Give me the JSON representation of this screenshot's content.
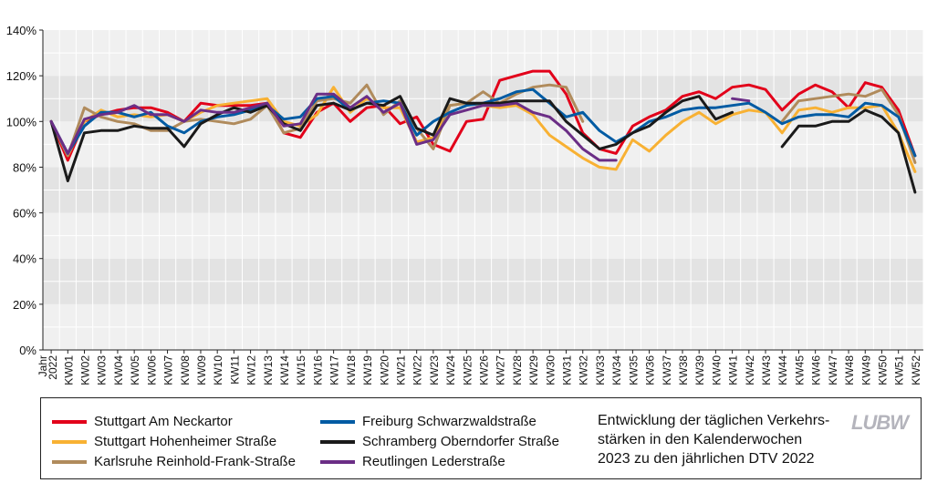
{
  "chart_data": {
    "type": "line",
    "title": "Entwicklung der täglichen Verkehrs-\nstärken in den Kalenderwochen\n2023 zu den jährlichen DTV 2022",
    "ylabel": "",
    "xlabel": "",
    "ylim": [
      0,
      140
    ],
    "yticks": [
      "0%",
      "20%",
      "40%",
      "60%",
      "80%",
      "100%",
      "120%",
      "140%"
    ],
    "categories": [
      "Jahr 2022",
      "KW01",
      "KW02",
      "KW03",
      "KW04",
      "KW05",
      "KW06",
      "KW07",
      "KW08",
      "KW09",
      "KW10",
      "KW11",
      "KW12",
      "KW13",
      "KW14",
      "KW15",
      "KW16",
      "KW17",
      "KW18",
      "KW19",
      "KW20",
      "KW21",
      "KW22",
      "KW23",
      "KW24",
      "KW25",
      "KW26",
      "KW27",
      "KW28",
      "KW29",
      "KW30",
      "KW31",
      "KW32",
      "KW33",
      "KW34",
      "KW35",
      "KW36",
      "KW37",
      "KW38",
      "KW39",
      "KW40",
      "KW41",
      "KW42",
      "KW43",
      "KW44",
      "KW45",
      "KW46",
      "KW47",
      "KW48",
      "KW49",
      "KW50",
      "KW51",
      "KW52"
    ],
    "grid": "horizontal bands",
    "legend_position": "bottom",
    "series": [
      {
        "name": "Stuttgart Am Neckartor",
        "color": "#e2001a",
        "values": [
          100,
          83,
          100,
          103,
          105,
          106,
          106,
          104,
          100,
          108,
          107,
          107,
          107,
          108,
          95,
          93,
          104,
          108,
          100,
          106,
          107,
          99,
          102,
          90,
          87,
          100,
          101,
          118,
          120,
          122,
          122,
          112,
          95,
          88,
          86,
          98,
          102,
          105,
          111,
          113,
          110,
          115,
          116,
          114,
          105,
          112,
          116,
          113,
          106,
          117,
          115,
          105,
          85
        ]
      },
      {
        "name": "Stuttgart Hohenheimer Straße",
        "color": "#f8b133",
        "values": [
          100,
          85,
          100,
          105,
          102,
          103,
          102,
          103,
          100,
          104,
          107,
          108,
          109,
          110,
          100,
          98,
          103,
          115,
          104,
          110,
          106,
          106,
          91,
          93,
          107,
          108,
          107,
          106,
          107,
          103,
          94,
          89,
          84,
          80,
          79,
          92,
          87,
          94,
          100,
          104,
          99,
          103,
          105,
          104,
          95,
          105,
          106,
          104,
          106,
          106,
          107,
          95,
          78
        ]
      },
      {
        "name": "Karlsruhe Reinhold-Frank-Straße",
        "color": "#b08b5c",
        "values": [
          100,
          85,
          106,
          102,
          100,
          99,
          96,
          96,
          100,
          101,
          100,
          99,
          101,
          107,
          95,
          97,
          109,
          110,
          108,
          116,
          103,
          109,
          97,
          88,
          107,
          108,
          113,
          108,
          112,
          115,
          116,
          115,
          100,
          null,
          null,
          null,
          null,
          null,
          null,
          null,
          null,
          null,
          null,
          null,
          100,
          109,
          110,
          111,
          112,
          111,
          114,
          103,
          82
        ]
      },
      {
        "name": "Freiburg Schwarzwaldstraße",
        "color": "#005ba3",
        "values": [
          100,
          86,
          98,
          104,
          104,
          102,
          104,
          98,
          95,
          100,
          102,
          103,
          105,
          107,
          101,
          102,
          110,
          111,
          105,
          108,
          109,
          108,
          94,
          100,
          104,
          107,
          108,
          110,
          113,
          114,
          108,
          102,
          104,
          96,
          91,
          95,
          100,
          102,
          105,
          106,
          106,
          107,
          108,
          104,
          99,
          102,
          103,
          103,
          102,
          108,
          107,
          102,
          85
        ]
      },
      {
        "name": "Schramberg Oberndorfer Straße",
        "color": "#1a1a1a",
        "values": [
          100,
          74,
          95,
          96,
          96,
          98,
          97,
          97,
          89,
          99,
          103,
          106,
          104,
          107,
          99,
          96,
          107,
          108,
          105,
          108,
          107,
          111,
          97,
          94,
          110,
          108,
          108,
          108,
          109,
          109,
          109,
          100,
          94,
          88,
          90,
          95,
          98,
          104,
          109,
          111,
          101,
          104,
          null,
          null,
          89,
          98,
          98,
          100,
          100,
          105,
          102,
          95,
          69
        ]
      },
      {
        "name": "Reutlingen Lederstraße",
        "color": "#6b2e86",
        "values": [
          100,
          86,
          101,
          103,
          104,
          107,
          103,
          103,
          100,
          105,
          104,
          104,
          106,
          108,
          98,
          99,
          112,
          112,
          106,
          111,
          104,
          108,
          90,
          92,
          103,
          105,
          107,
          107,
          108,
          104,
          102,
          96,
          88,
          83,
          83,
          null,
          null,
          null,
          null,
          null,
          null,
          110,
          109,
          null,
          null,
          null,
          null,
          null,
          null,
          null,
          null,
          null,
          null
        ]
      }
    ]
  },
  "legend": {
    "items": [
      {
        "label": "Stuttgart Am Neckartor",
        "color": "#e2001a"
      },
      {
        "label": "Freiburg Schwarzwaldstraße",
        "color": "#005ba3"
      },
      {
        "label": "Stuttgart Hohenheimer Straße",
        "color": "#f8b133"
      },
      {
        "label": "Schramberg Oberndorfer Straße",
        "color": "#1a1a1a"
      },
      {
        "label": "Karlsruhe Reinhold-Frank-Straße",
        "color": "#b08b5c"
      },
      {
        "label": "Reutlingen Lederstraße",
        "color": "#6b2e86"
      }
    ]
  },
  "logo_text": "LUBW"
}
